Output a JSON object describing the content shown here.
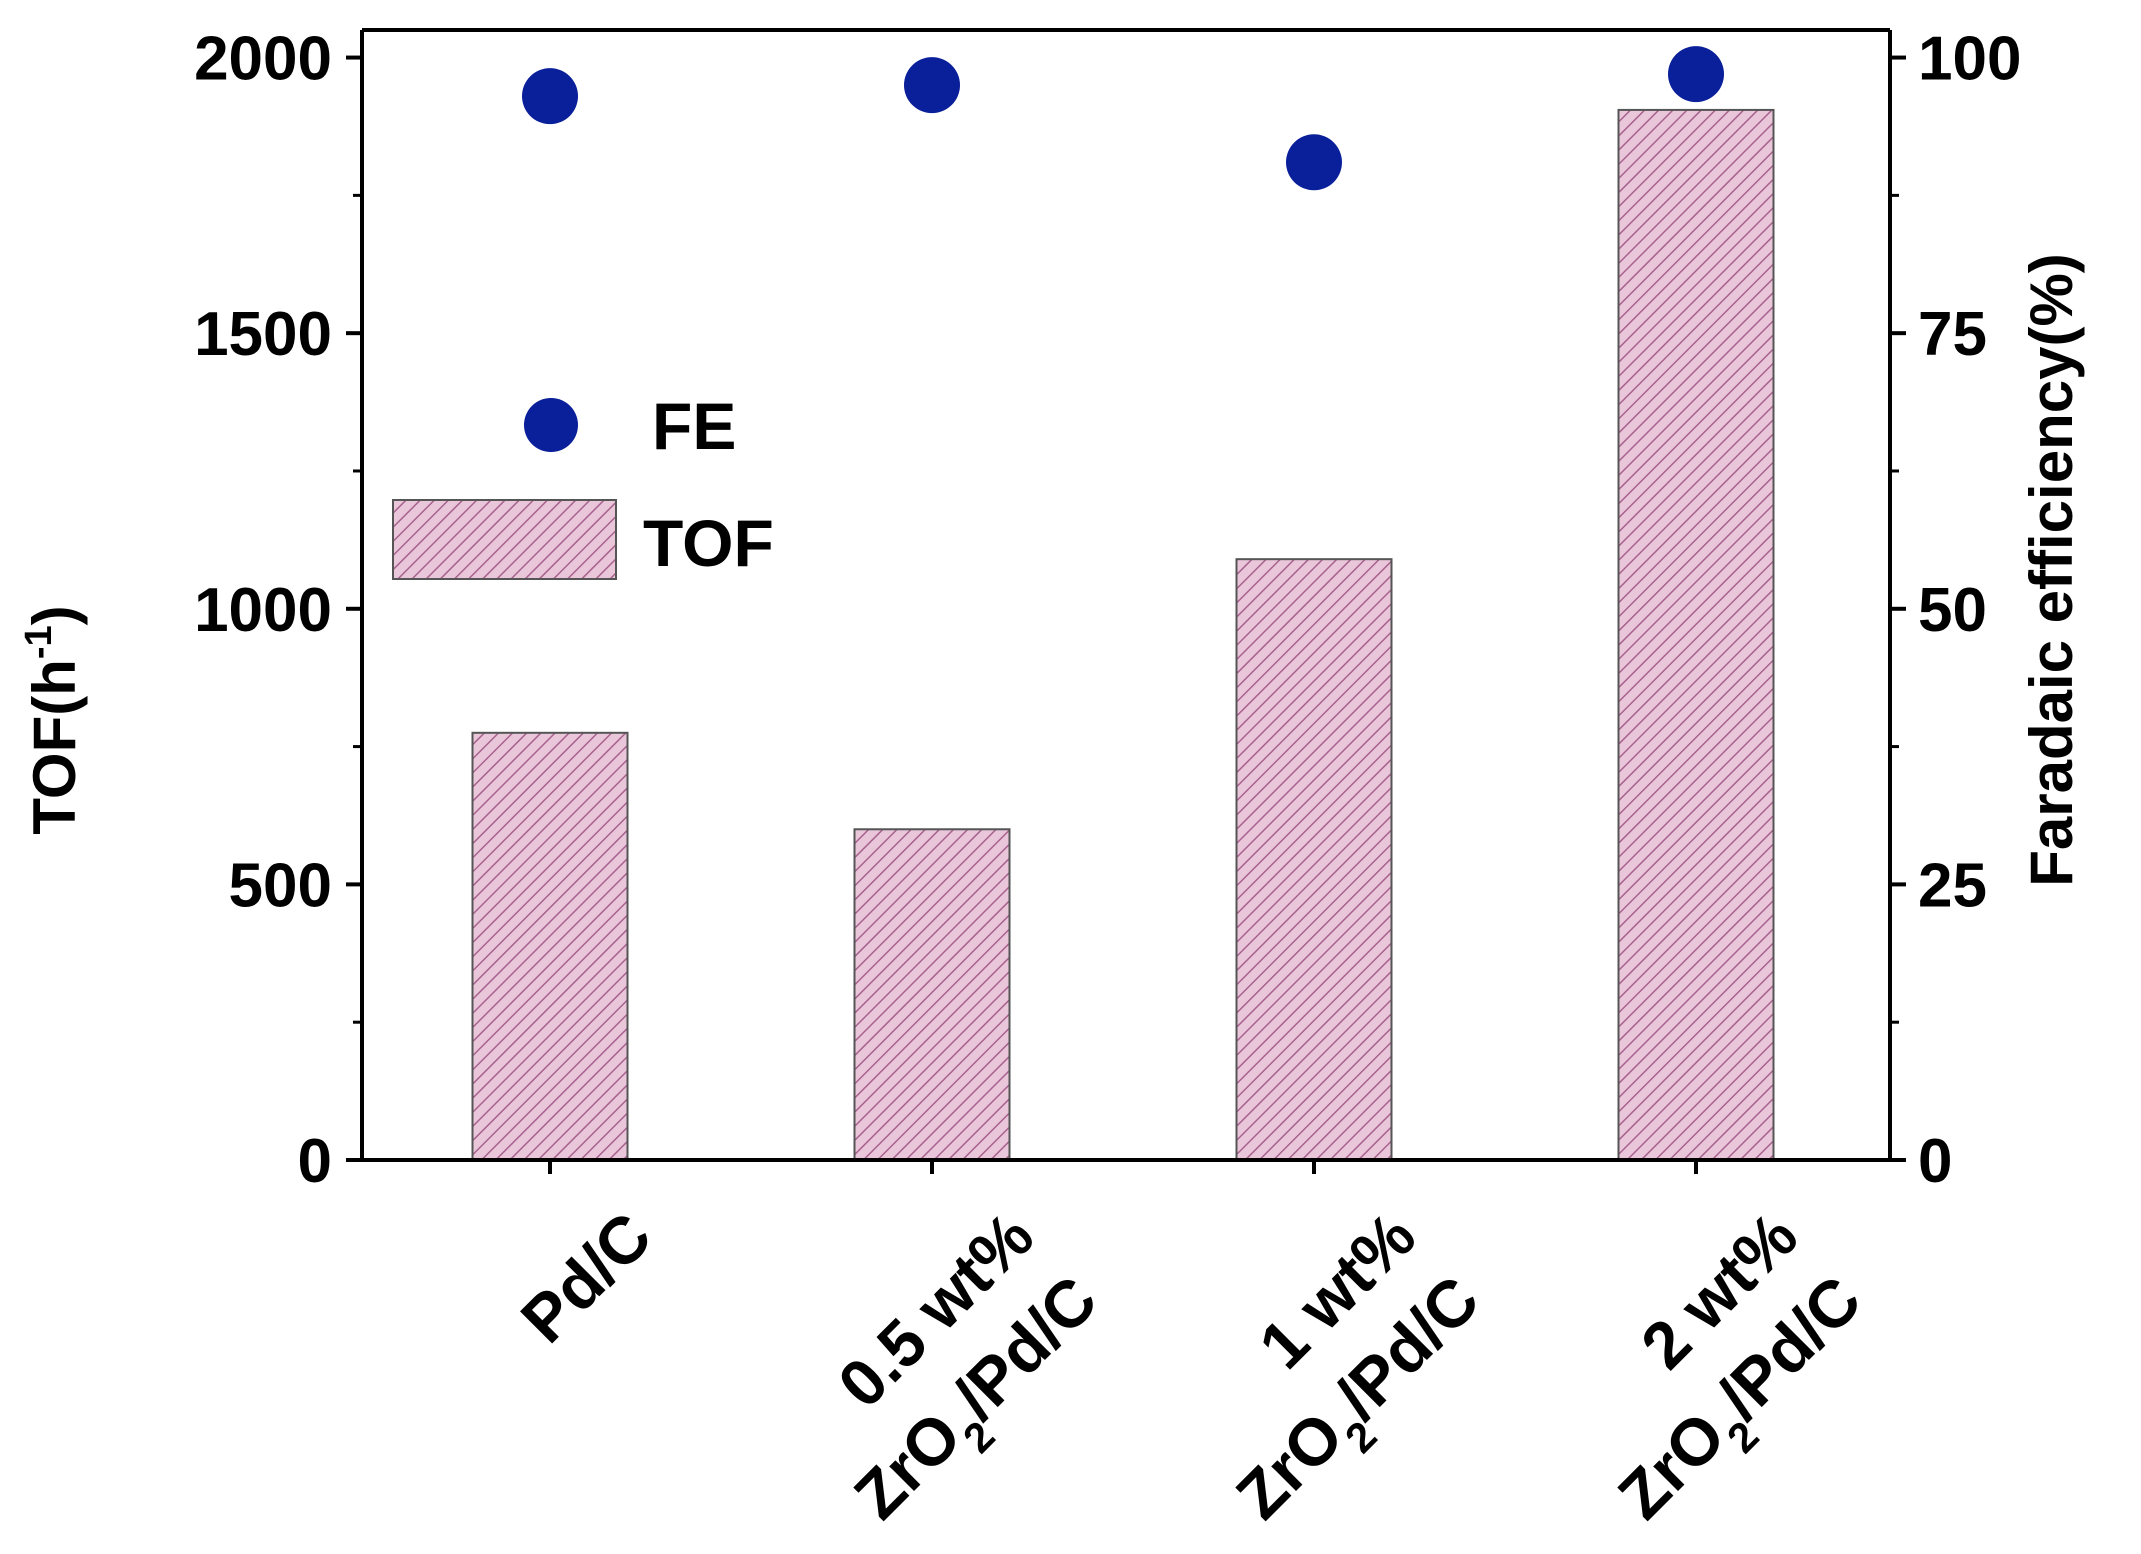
{
  "chart_data": {
    "type": "bar",
    "categories": [
      {
        "line1": "Pd/C",
        "line2_main": "",
        "line2_sub": "",
        "line2_tail": ""
      },
      {
        "line1": "0.5 wt%",
        "line2_main": "ZrO",
        "line2_sub": "2",
        "line2_tail": "/Pd/C"
      },
      {
        "line1": "1 wt%",
        "line2_main": "ZrO",
        "line2_sub": "2",
        "line2_tail": "/Pd/C"
      },
      {
        "line1": "2 wt%",
        "line2_main": "ZrO",
        "line2_sub": "2",
        "line2_tail": "/Pd/C"
      }
    ],
    "series": [
      {
        "name": "TOF",
        "kind": "bar",
        "axis": "left",
        "values": [
          775,
          600,
          1090,
          1905
        ]
      },
      {
        "name": "FE",
        "kind": "scatter",
        "axis": "right",
        "values": [
          96.5,
          97.5,
          90.5,
          98.5
        ]
      }
    ],
    "left_axis": {
      "title_main": "TOF(h",
      "title_sup": "-1",
      "title_tail": ")",
      "ylim": [
        0,
        2050
      ],
      "ticks": [
        "0",
        "500",
        "1000",
        "1500",
        "2000"
      ],
      "tick_values": [
        0,
        500,
        1000,
        1500,
        2000
      ]
    },
    "right_axis": {
      "title": "Faradaic efficiency(%)",
      "ylim": [
        0,
        102.5
      ],
      "ticks": [
        "0",
        "25",
        "50",
        "75",
        "100"
      ],
      "tick_values": [
        0,
        25,
        50,
        75,
        100
      ]
    },
    "legend": {
      "position": "upper-left",
      "items": [
        {
          "label": "FE",
          "marker": "circle"
        },
        {
          "label": "TOF",
          "marker": "hatched-bar"
        }
      ]
    },
    "colors": {
      "bar_fill": "#e9c6da",
      "bar_hatch": "#a8628d",
      "bar_edge": "#555555",
      "marker": "#0a1f9a",
      "axis": "#000000"
    }
  }
}
